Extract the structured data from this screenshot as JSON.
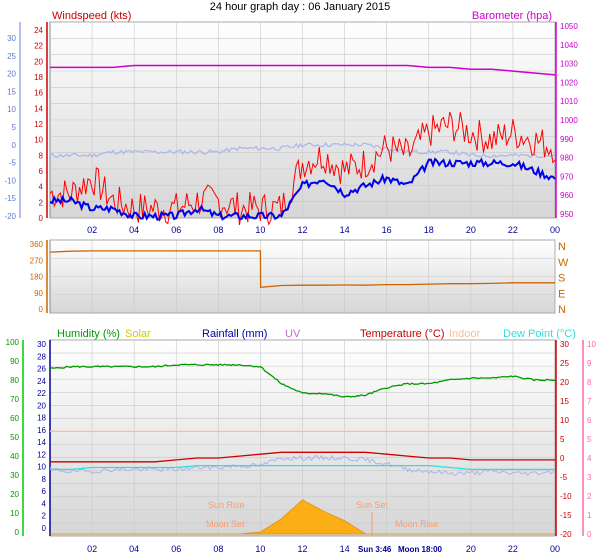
{
  "title": "24 hour graph day : 06 January 2015",
  "colors": {
    "wind": "#ff0000",
    "wind_avg": "#0000ee",
    "barometer": "#cc00cc",
    "bar_axis": "#cc00cc",
    "wind_axis": "#cc0000",
    "left_blue_axis": "#9aa8ee",
    "direction": "#cc6600",
    "humidity": "#009900",
    "humidity_axis": "#00cc00",
    "solar": "#cccc00",
    "rainfall": "#000099",
    "uv": "#cc66cc",
    "temperature": "#cc0000",
    "indoor": "#ffbb99",
    "dew_point": "#33dddd",
    "dew_axis": "#ff66aa",
    "chill": "#aab4ee",
    "sun": "#ffaa00",
    "moon_label": "#ff9966"
  },
  "x_ticks": [
    "02",
    "04",
    "06",
    "08",
    "10",
    "12",
    "14",
    "16",
    "18",
    "20",
    "22",
    "00"
  ],
  "top_chart": {
    "left_label": "Windspeed (kts)",
    "right_label": "Barometer (hpa)",
    "left_ticks": [
      "24",
      "22",
      "20",
      "18",
      "16",
      "14",
      "12",
      "10",
      "8",
      "6",
      "4",
      "2",
      "0"
    ],
    "left_outer_ticks": [
      "30",
      "25",
      "20",
      "15",
      "10",
      "5",
      "0",
      "-5",
      "-10",
      "-15",
      "-20"
    ],
    "right_ticks": [
      "1050",
      "1040",
      "1030",
      "1020",
      "1010",
      "1000",
      "990",
      "980",
      "970",
      "960",
      "950"
    ]
  },
  "direction_chart": {
    "left_ticks": [
      "360",
      "270",
      "180",
      "90",
      "0"
    ],
    "compass": [
      "N",
      "W",
      "S",
      "E",
      "N"
    ]
  },
  "bottom_chart": {
    "legend": {
      "humidity": "Humidity (%)",
      "solar": "Solar",
      "rainfall": "Rainfall (mm)",
      "uv": "UV",
      "temperature": "Temperature (°C)",
      "indoor": "Indoor",
      "dew_point": "Dew Point (°C)"
    },
    "humidity_ticks": [
      "100",
      "90",
      "80",
      "70",
      "60",
      "50",
      "40",
      "30",
      "20",
      "10",
      "0"
    ],
    "rain_ticks": [
      "30",
      "28",
      "26",
      "24",
      "22",
      "20",
      "18",
      "16",
      "14",
      "12",
      "10",
      "8",
      "6",
      "4",
      "2",
      "0"
    ],
    "temp_ticks": [
      "30",
      "25",
      "20",
      "15",
      "10",
      "5",
      "0",
      "-5",
      "-10",
      "-15",
      "-20"
    ],
    "uv_ticks": [
      "10",
      "9",
      "8",
      "7",
      "6",
      "5",
      "4",
      "3",
      "2",
      "1",
      "0"
    ],
    "astro": {
      "sun_rise": "Sun Rise",
      "sun_set": "Sun Set",
      "moon_set": "Moon Set",
      "moon_rise": "Moon Rise",
      "sun_xtick": "Sun 3:46",
      "moon_xtick": "Moon 18:00"
    }
  },
  "chart_data": [
    {
      "type": "line",
      "title": "24 hour graph day : 06 January 2015",
      "xlabel": "",
      "ylabel": "Windspeed (kts)",
      "y2label": "Barometer (hpa)",
      "x_hours": [
        0,
        1,
        2,
        3,
        4,
        5,
        6,
        7,
        8,
        9,
        10,
        11,
        12,
        13,
        14,
        15,
        16,
        17,
        18,
        19,
        20,
        21,
        22,
        23,
        24
      ],
      "ylim": [
        0,
        25
      ],
      "y2lim": [
        950,
        1050
      ],
      "series": [
        {
          "name": "Windspeed (kts)",
          "axis": "left",
          "values": [
            3,
            3,
            5,
            2,
            1,
            1,
            1,
            2,
            2,
            1,
            1,
            1,
            7,
            8,
            6,
            7,
            9,
            8,
            11,
            12,
            11,
            10,
            11,
            10,
            9
          ]
        },
        {
          "name": "Average",
          "axis": "left",
          "values": [
            2,
            2,
            1,
            1,
            0,
            0,
            0,
            1,
            0,
            0,
            0,
            0,
            4,
            5,
            3,
            4,
            5,
            4,
            7,
            7,
            7,
            7,
            7,
            6,
            5
          ]
        },
        {
          "name": "Barometer (hpa)",
          "axis": "right",
          "values": [
            1028,
            1028,
            1028,
            1028,
            1029,
            1029,
            1029,
            1029,
            1029,
            1029,
            1029,
            1029,
            1029,
            1029,
            1029,
            1029,
            1029,
            1029,
            1028,
            1028,
            1027,
            1027,
            1026,
            1025,
            1024
          ]
        },
        {
          "name": "Wind Chill",
          "axis": "left2",
          "ylim": [
            -20,
            30
          ],
          "values": [
            -3,
            -3,
            -3,
            -2,
            -2,
            -2,
            -2,
            -2,
            -2,
            -1,
            -1,
            -1,
            0,
            0,
            0,
            0,
            -1,
            -2,
            -2,
            -2,
            -3,
            -3,
            -3,
            -3,
            -3
          ]
        }
      ]
    },
    {
      "type": "line",
      "title": "",
      "ylabel": "",
      "ylim": [
        0,
        360
      ],
      "x_hours": [
        0,
        1,
        2,
        3,
        4,
        5,
        6,
        7,
        8,
        9,
        10,
        10.01,
        11,
        12,
        13,
        14,
        15,
        16,
        17,
        18,
        19,
        20,
        21,
        22,
        23,
        24
      ],
      "series": [
        {
          "name": "Wind direction",
          "values": [
            315,
            320,
            322,
            322,
            322,
            322,
            322,
            322,
            322,
            322,
            322,
            120,
            130,
            132,
            132,
            133,
            132,
            135,
            135,
            138,
            140,
            140,
            142,
            145,
            145,
            145
          ]
        }
      ]
    },
    {
      "type": "line",
      "title": "",
      "x_hours": [
        0,
        1,
        2,
        3,
        4,
        5,
        6,
        7,
        8,
        9,
        10,
        11,
        12,
        13,
        14,
        15,
        16,
        17,
        18,
        19,
        20,
        21,
        22,
        23,
        24
      ],
      "series": [
        {
          "name": "Humidity (%)",
          "axis": "humidity",
          "ylim": [
            0,
            100
          ],
          "values": [
            86,
            87,
            87,
            87,
            87,
            87,
            88,
            88,
            88,
            88,
            87,
            78,
            73,
            73,
            71,
            72,
            76,
            78,
            78,
            80,
            81,
            81,
            82,
            80,
            80
          ]
        },
        {
          "name": "Indoor",
          "axis": "temp",
          "ylim": [
            -20,
            30
          ],
          "values": [
            7,
            7,
            7,
            7,
            7,
            7,
            7,
            7,
            7,
            7,
            7,
            7,
            7,
            7,
            7,
            7,
            7,
            7,
            7,
            7,
            7,
            7,
            7,
            7,
            7
          ]
        },
        {
          "name": "Temperature (°C)",
          "axis": "temp",
          "ylim": [
            -20,
            30
          ],
          "values": [
            -1,
            -1,
            -1,
            -1,
            -1,
            -1,
            -0.5,
            0,
            0,
            0.5,
            1,
            1.5,
            1.5,
            1.5,
            1.5,
            1.5,
            1,
            0.5,
            0,
            0,
            -0.5,
            -0.5,
            -0.5,
            -0.5,
            -0.5
          ]
        },
        {
          "name": "Dew Point (°C)",
          "axis": "temp",
          "ylim": [
            -20,
            30
          ],
          "values": [
            -3,
            -3,
            -2.5,
            -2.5,
            -2.5,
            -2.5,
            -2.5,
            -2,
            -2,
            -2,
            -2,
            -2,
            -2,
            -2,
            -2,
            -2,
            -2,
            -2,
            -2,
            -2.5,
            -3,
            -3,
            -3,
            -3,
            -3
          ]
        },
        {
          "name": "Wind Chill",
          "axis": "temp",
          "ylim": [
            -20,
            30
          ],
          "values": [
            -3,
            -3.5,
            -3.5,
            -3,
            -3,
            -3,
            -3,
            -2.5,
            -2.5,
            -2,
            -2,
            0,
            0,
            0,
            0,
            -0.5,
            -1.5,
            -3,
            -3.5,
            -4,
            -4,
            -3.5,
            -4,
            -4,
            -3.5
          ]
        },
        {
          "name": "Solar",
          "axis": "uv",
          "ylim": [
            0,
            10
          ],
          "values": [
            0,
            0,
            0,
            0,
            0,
            0,
            0,
            0,
            0,
            0,
            0.1,
            0.8,
            1.8,
            1.2,
            0.7,
            0,
            0,
            0,
            0,
            0,
            0,
            0,
            0,
            0,
            0
          ]
        }
      ],
      "annotations": [
        "Sun Rise",
        "Sun Set",
        "Moon Set",
        "Moon Rise",
        "Sun 3:46",
        "Moon 18:00"
      ]
    }
  ]
}
